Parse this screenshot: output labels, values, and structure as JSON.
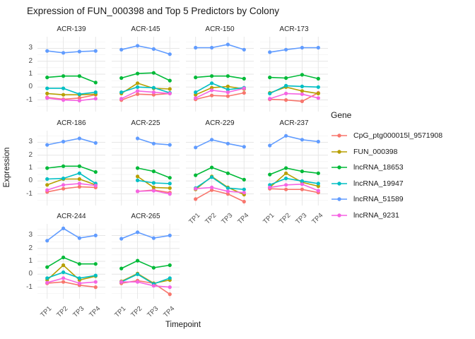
{
  "chart_data": {
    "type": "line",
    "title": "Expression of FUN_000398 and Top 5 Predictors by Colony",
    "xlabel": "Timepoint",
    "ylabel": "Expression",
    "legend_title": "Gene",
    "legend_position": "right",
    "grid": true,
    "categories": [
      "TP1",
      "TP2",
      "TP3",
      "TP4"
    ],
    "y_ticks": [
      3,
      2,
      1,
      0,
      -1
    ],
    "y_minor_ticks": [
      3.5,
      2.5,
      1.5,
      0.5,
      -0.5,
      -1.5
    ],
    "ylim": [
      -1.9,
      3.9
    ],
    "series": [
      {
        "name": "CpG_ptg000015l_9571908",
        "color": "#F8766D"
      },
      {
        "name": "FUN_000398",
        "color": "#B79F00"
      },
      {
        "name": "lncRNA_18653",
        "color": "#00BA38"
      },
      {
        "name": "lncRNA_19947",
        "color": "#00BFC4"
      },
      {
        "name": "lncRNA_51589",
        "color": "#619CFF"
      },
      {
        "name": "lncRNA_9231",
        "color": "#F564E3"
      }
    ],
    "facets": [
      {
        "label": "ACR-139",
        "values": [
          [
            -0.8,
            -0.95,
            -0.85,
            -0.6
          ],
          [
            -0.5,
            -0.6,
            -0.6,
            -0.55
          ],
          [
            0.75,
            0.85,
            0.85,
            0.35
          ],
          [
            -0.1,
            -0.1,
            -0.55,
            -0.4
          ],
          [
            2.8,
            2.65,
            2.75,
            2.8
          ],
          [
            -0.85,
            -1.0,
            -1.05,
            -0.9
          ]
        ]
      },
      {
        "label": "ACR-145",
        "values": [
          [
            -1.0,
            -0.55,
            -0.6,
            -0.5
          ],
          [
            -0.5,
            0.3,
            -0.1,
            -0.15
          ],
          [
            0.7,
            1.05,
            1.1,
            0.5
          ],
          [
            -0.4,
            0.0,
            -0.05,
            -0.45
          ],
          [
            2.9,
            3.2,
            2.95,
            2.55
          ],
          [
            -0.9,
            -0.3,
            -0.4,
            -0.5
          ]
        ]
      },
      {
        "label": "ACR-150",
        "values": [
          [
            -0.95,
            -0.65,
            -0.7,
            -0.45
          ],
          [
            -0.6,
            -0.05,
            0.05,
            -0.15
          ],
          [
            0.75,
            0.85,
            0.85,
            0.65
          ],
          [
            -0.4,
            0.3,
            -0.2,
            -0.05
          ],
          [
            3.05,
            3.05,
            3.3,
            2.9
          ],
          [
            -0.85,
            -0.25,
            -0.4,
            -0.1
          ]
        ]
      },
      {
        "label": "ACR-173",
        "values": [
          [
            -0.95,
            -1.0,
            -1.1,
            -0.45
          ],
          [
            -0.45,
            0.0,
            -0.3,
            -0.5
          ],
          [
            0.75,
            0.7,
            0.95,
            0.65
          ],
          [
            -0.5,
            0.1,
            0.05,
            0.0
          ],
          [
            2.7,
            2.9,
            3.05,
            3.05
          ],
          [
            -0.9,
            -0.5,
            -0.55,
            -0.85
          ]
        ]
      },
      {
        "label": "ACR-186",
        "values": [
          [
            -0.85,
            -0.6,
            -0.45,
            -0.5
          ],
          [
            -0.3,
            0.15,
            0.15,
            -0.3
          ],
          [
            1.0,
            1.15,
            1.15,
            0.7
          ],
          [
            0.15,
            0.2,
            0.6,
            -0.2
          ],
          [
            2.8,
            3.05,
            3.3,
            2.95
          ],
          [
            -0.7,
            -0.3,
            -0.2,
            -0.35
          ]
        ]
      },
      {
        "label": "ACR-225",
        "values": [
          [
            null,
            -0.8,
            -0.7,
            -0.9
          ],
          [
            null,
            0.35,
            -0.5,
            -0.55
          ],
          [
            null,
            1.0,
            0.75,
            0.25
          ],
          [
            null,
            0.05,
            -0.15,
            -0.2
          ],
          [
            null,
            3.3,
            2.9,
            2.8
          ],
          [
            null,
            -0.8,
            -0.75,
            -1.0
          ]
        ]
      },
      {
        "label": "ACR-229",
        "values": [
          [
            -1.4,
            -0.7,
            -1.0,
            -1.6
          ],
          [
            -0.65,
            0.35,
            -0.5,
            -1.05
          ],
          [
            0.45,
            1.05,
            0.6,
            0.1
          ],
          [
            -0.55,
            0.3,
            -0.55,
            -0.65
          ],
          [
            2.6,
            3.2,
            2.9,
            2.65
          ],
          [
            -0.6,
            -0.5,
            -0.8,
            -0.9
          ]
        ]
      },
      {
        "label": "ACR-237",
        "values": [
          [
            -0.6,
            -0.65,
            -0.65,
            -0.9
          ],
          [
            -0.5,
            0.6,
            -0.1,
            -0.4
          ],
          [
            0.5,
            1.0,
            0.75,
            0.6
          ],
          [
            -0.3,
            0.2,
            0.0,
            -0.2
          ],
          [
            2.75,
            3.5,
            3.2,
            3.05
          ],
          [
            -0.5,
            -0.3,
            -0.25,
            -0.75
          ]
        ]
      },
      {
        "label": "ACR-244",
        "values": [
          [
            -0.7,
            -0.6,
            -0.85,
            -1.0
          ],
          [
            -0.45,
            0.7,
            -0.45,
            -0.15
          ],
          [
            0.55,
            1.3,
            0.8,
            0.8
          ],
          [
            -0.3,
            0.15,
            -0.3,
            -0.1
          ],
          [
            2.6,
            3.55,
            2.8,
            3.0
          ],
          [
            -0.65,
            -0.3,
            -0.7,
            -0.6
          ]
        ]
      },
      {
        "label": "ACR-265",
        "values": [
          [
            -0.7,
            -0.5,
            -0.7,
            -1.55
          ],
          [
            -0.55,
            0.05,
            -0.7,
            -0.45
          ],
          [
            0.45,
            1.05,
            0.5,
            0.7
          ],
          [
            -0.6,
            0.0,
            -0.75,
            -0.3
          ],
          [
            2.75,
            3.25,
            2.8,
            3.0
          ],
          [
            -0.6,
            -0.6,
            -0.9,
            -1.0
          ]
        ]
      }
    ]
  },
  "colors": {
    "background": "#FFFFFF",
    "grid_major": "#E6E6E6",
    "grid_minor": "#F2F2F2",
    "axis_text": "#4D4D4D",
    "text_dark": "#1A1A1A"
  }
}
